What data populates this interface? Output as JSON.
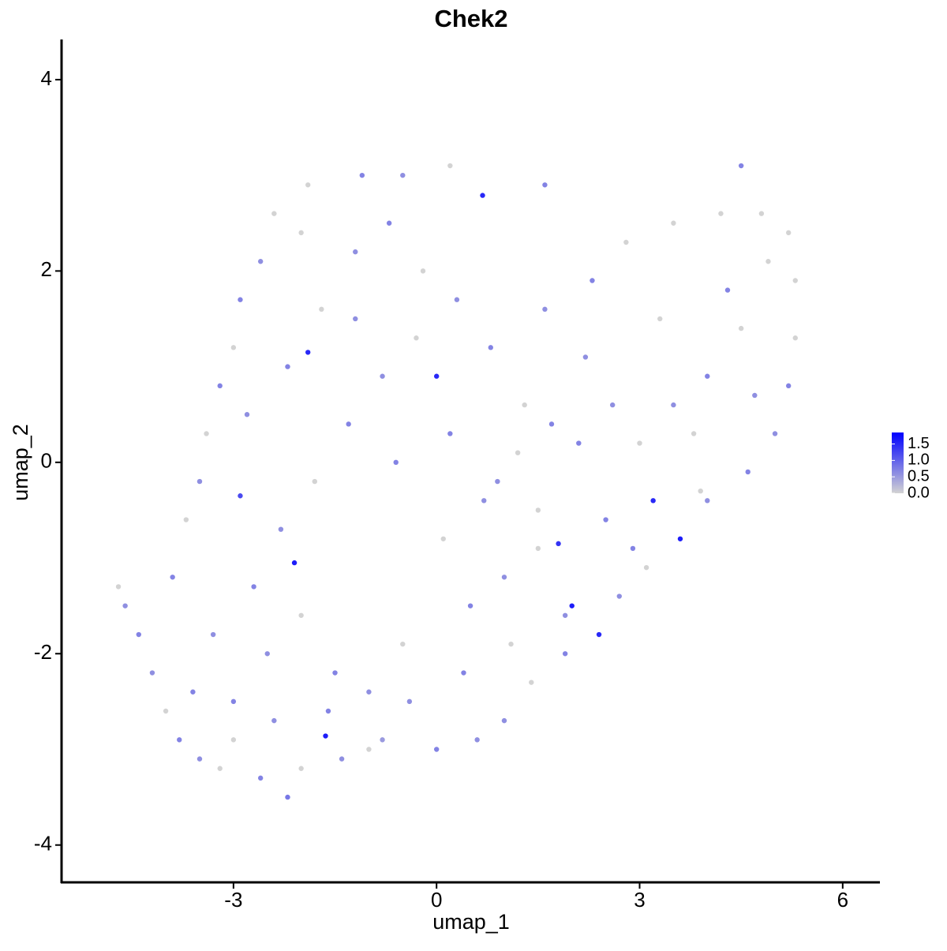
{
  "chart_data": {
    "type": "scatter",
    "title": "Chek2",
    "x_label": "umap_1",
    "y_label": "umap_2",
    "xlim": [
      -5.54,
      6.55
    ],
    "ylim": [
      -4.39,
      4.42
    ],
    "xticks": [
      -3,
      0,
      3,
      6
    ],
    "yticks": [
      -4,
      -2,
      0,
      2,
      4
    ],
    "color_low": "#d3d3d3",
    "color_high": "#0000ff",
    "clim": [
      0,
      1.85
    ],
    "cticks": [
      {
        "value": 0,
        "label": "0.0"
      },
      {
        "value": 0.5,
        "label": "0.5"
      },
      {
        "value": 1,
        "label": "1.0"
      },
      {
        "value": 1.5,
        "label": "1.5"
      }
    ],
    "x": [
      -4.7,
      -4.6,
      -4.4,
      -4.2,
      -4.0,
      -3.8,
      -3.5,
      -3.2,
      -2.6,
      -2.2,
      -2.0,
      -1.4,
      -1.64,
      -2.1,
      -0.8,
      0.0,
      0.6,
      1.0,
      1.4,
      1.9,
      2.4,
      2.7,
      3.1,
      3.6,
      3.2,
      4.0,
      4.6,
      5.0,
      5.2,
      5.3,
      5.3,
      5.2,
      4.8,
      4.5,
      4.2,
      3.5,
      2.8,
      2.3,
      1.6,
      0.68,
      1.6,
      0.2,
      -0.5,
      -1.1,
      -1.9,
      -2.4,
      -2.6,
      -2.9,
      -3.0,
      -3.2,
      -3.4,
      -3.5,
      -3.7,
      -3.9,
      -2.9,
      -1.9,
      0.0,
      1.8,
      2.0,
      -3.0,
      -2.5,
      -2.0,
      -1.5,
      -1.0,
      -0.5,
      0.5,
      1.0,
      1.5,
      2.5,
      3.0,
      3.5,
      4.0,
      4.5,
      -2.8,
      -2.2,
      -1.7,
      -1.2,
      -0.7,
      -0.2,
      0.3,
      0.8,
      1.3,
      2.2,
      3.3,
      4.3,
      4.9,
      -3.3,
      -2.7,
      -2.3,
      -1.8,
      -1.3,
      -0.8,
      -0.3,
      0.2,
      0.7,
      1.2,
      1.7,
      2.6,
      3.8,
      -3.6,
      -3.0,
      -2.4,
      -1.6,
      -1.0,
      -0.4,
      0.4,
      1.1,
      1.9,
      2.9,
      -2.0,
      -1.2,
      -0.6,
      0.1,
      0.9,
      1.5,
      2.1,
      3.9,
      4.7
    ],
    "y": [
      -1.3,
      -1.5,
      -1.8,
      -2.2,
      -2.6,
      -2.9,
      -3.1,
      -3.2,
      -3.3,
      -3.5,
      -3.2,
      -3.1,
      -2.86,
      -1.05,
      -2.9,
      -3.0,
      -2.9,
      -2.7,
      -2.3,
      -2.0,
      -1.8,
      -1.4,
      -1.1,
      -0.8,
      -0.4,
      -0.4,
      -0.1,
      0.3,
      0.8,
      1.3,
      1.9,
      2.4,
      2.6,
      3.1,
      2.6,
      2.5,
      2.3,
      1.9,
      1.6,
      2.79,
      2.9,
      3.1,
      3.0,
      3.0,
      2.9,
      2.6,
      2.1,
      1.7,
      1.2,
      0.8,
      0.3,
      -0.2,
      -0.6,
      -1.2,
      -0.35,
      1.15,
      0.9,
      -0.85,
      -1.5,
      -2.5,
      -2.0,
      -1.6,
      -2.2,
      -2.4,
      -1.9,
      -1.5,
      -1.2,
      -0.9,
      -0.6,
      0.2,
      0.6,
      0.9,
      1.4,
      0.5,
      1.0,
      1.6,
      2.2,
      2.5,
      2.0,
      1.7,
      1.2,
      0.6,
      1.1,
      1.5,
      1.8,
      2.1,
      -1.8,
      -1.3,
      -0.7,
      -0.2,
      0.4,
      0.9,
      1.3,
      0.3,
      -0.4,
      0.1,
      0.4,
      0.6,
      0.3,
      -2.4,
      -2.9,
      -2.7,
      -2.6,
      -3.0,
      -2.5,
      -2.2,
      -1.9,
      -1.6,
      -0.9,
      2.4,
      1.5,
      0.0,
      -0.8,
      -0.2,
      -0.5,
      0.2,
      -0.3,
      0.7
    ],
    "values": [
      0,
      0.6,
      0.7,
      0.6,
      0,
      0.7,
      0.6,
      0,
      0.7,
      0.8,
      0,
      0.6,
      1.6,
      1.6,
      0.5,
      0.7,
      0.6,
      0.6,
      0,
      0.7,
      1.5,
      0.6,
      0,
      1.6,
      1.5,
      0.6,
      0.7,
      0.6,
      0.7,
      0,
      0,
      0,
      0,
      0.7,
      0,
      0,
      0,
      0.7,
      0.6,
      1.5,
      0.7,
      0,
      0.6,
      0.7,
      0,
      0,
      0.6,
      0.7,
      0,
      0.7,
      0,
      0.6,
      0,
      0.7,
      1.2,
      1.5,
      1.5,
      1.4,
      1.6,
      0.7,
      0.6,
      0,
      0.7,
      0.6,
      0,
      0.7,
      0.6,
      0,
      0.7,
      0,
      0.6,
      0.7,
      0,
      0.6,
      0.7,
      0,
      0.6,
      0.7,
      0,
      0.6,
      0.7,
      0,
      0.6,
      0,
      0.7,
      0,
      0.6,
      0.7,
      0.6,
      0,
      0.7,
      0.6,
      0,
      0.7,
      0.6,
      0,
      0.7,
      0.6,
      0,
      0.7,
      0,
      0.6,
      0.7,
      0,
      0.6,
      0.7,
      0,
      0.6,
      0.7,
      0,
      0.6,
      0.7,
      0,
      0.6,
      0,
      0.7,
      0,
      0.6
    ]
  }
}
